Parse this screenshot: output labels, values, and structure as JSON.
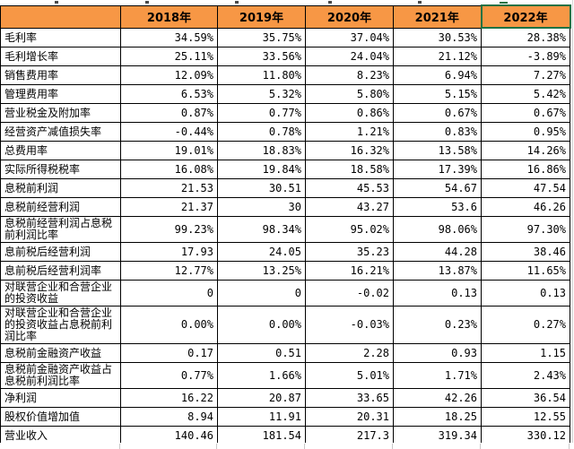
{
  "table": {
    "columns": [
      "",
      "2018年",
      "2019年",
      "2020年",
      "2021年",
      "2022年"
    ],
    "selected_column": "2022年",
    "rows": [
      {
        "label": "毛利率",
        "tall": false,
        "values": [
          "34.59%",
          "35.75%",
          "37.04%",
          "30.53%",
          "28.38%"
        ]
      },
      {
        "label": "毛利增长率",
        "tall": false,
        "values": [
          "25.11%",
          "33.56%",
          "24.04%",
          "21.12%",
          "-3.89%"
        ]
      },
      {
        "label": "销售费用率",
        "tall": false,
        "values": [
          "12.09%",
          "11.80%",
          "8.23%",
          "6.94%",
          "7.27%"
        ]
      },
      {
        "label": "管理费用率",
        "tall": false,
        "values": [
          "6.53%",
          "5.32%",
          "5.80%",
          "5.15%",
          "5.42%"
        ]
      },
      {
        "label": "营业税金及附加率",
        "tall": false,
        "values": [
          "0.87%",
          "0.77%",
          "0.86%",
          "0.67%",
          "0.67%"
        ]
      },
      {
        "label": "经营资产减值损失率",
        "tall": false,
        "values": [
          "-0.44%",
          "0.78%",
          "1.21%",
          "0.83%",
          "0.95%"
        ]
      },
      {
        "label": "总费用率",
        "tall": false,
        "values": [
          "19.01%",
          "18.83%",
          "16.32%",
          "13.58%",
          "14.26%"
        ]
      },
      {
        "label": "实际所得税税率",
        "tall": false,
        "values": [
          "16.08%",
          "19.84%",
          "18.58%",
          "17.39%",
          "16.86%"
        ]
      },
      {
        "label": "息税前利润",
        "tall": false,
        "values": [
          "21.53",
          "30.51",
          "45.53",
          "54.67",
          "47.54"
        ]
      },
      {
        "label": "息税前经营利润",
        "tall": false,
        "values": [
          "21.37",
          "30",
          "43.27",
          "53.6",
          "46.26"
        ]
      },
      {
        "label": "息税前经营利润占息税前利润比率",
        "tall": true,
        "values": [
          "99.23%",
          "98.34%",
          "95.02%",
          "98.06%",
          "97.30%"
        ]
      },
      {
        "label": "息前税后经营利润",
        "tall": false,
        "values": [
          "17.93",
          "24.05",
          "35.23",
          "44.28",
          "38.46"
        ]
      },
      {
        "label": "息前税后经营利润率",
        "tall": false,
        "values": [
          "12.77%",
          "13.25%",
          "16.21%",
          "13.87%",
          "11.65%"
        ]
      },
      {
        "label": "对联营企业和合营企业的投资收益",
        "tall": true,
        "values": [
          "0",
          "0",
          "-0.02",
          "0.13",
          "0.13"
        ]
      },
      {
        "label": "对联营企业和合营企业的投资收益占息税前利润比率",
        "tall": true,
        "values": [
          "0.00%",
          "0.00%",
          "-0.03%",
          "0.23%",
          "0.27%"
        ]
      },
      {
        "label": "息税前金融资产收益",
        "tall": false,
        "values": [
          "0.17",
          "0.51",
          "2.28",
          "0.93",
          "1.15"
        ]
      },
      {
        "label": "息税前金融资产收益占息税前利润比率",
        "tall": true,
        "values": [
          "0.77%",
          "1.66%",
          "5.01%",
          "1.71%",
          "2.43%"
        ]
      },
      {
        "label": "净利润",
        "tall": false,
        "values": [
          "16.22",
          "20.87",
          "33.65",
          "42.26",
          "36.54"
        ]
      },
      {
        "label": "股权价值增加值",
        "tall": false,
        "values": [
          "8.94",
          "11.91",
          "20.31",
          "18.25",
          "12.55"
        ]
      },
      {
        "label": "营业收入",
        "tall": false,
        "values": [
          "140.46",
          "181.54",
          "217.3",
          "319.34",
          "330.12"
        ]
      }
    ]
  },
  "colors": {
    "header_bg": "#F79745",
    "selection_border_green": "#1F7244",
    "grid_border": "#000000",
    "faint_gridline": "#D5D5D5"
  }
}
